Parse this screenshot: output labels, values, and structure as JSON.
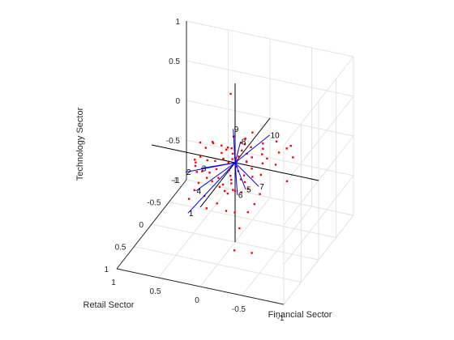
{
  "chart_data": {
    "type": "biplot-3d",
    "xlabel": "Financial Sector",
    "ylabel": "Retail Sector",
    "zlabel": "Technology Sector",
    "xlim": [
      -1,
      1
    ],
    "ylim": [
      -1,
      1
    ],
    "zlim": [
      -1,
      1
    ],
    "xticks": [
      "-1",
      "-0.5",
      "0",
      "0.5",
      "1"
    ],
    "yticks": [
      "-1",
      "-0.5",
      "0",
      "0.5",
      "1"
    ],
    "zticks": [
      "-1",
      "-0.5",
      "0",
      "0.5",
      "1"
    ],
    "grid": true,
    "colors": {
      "vectors": "#0000ff",
      "points": "#ff0000",
      "axes": "#000000"
    },
    "vectors": [
      {
        "label": "1",
        "x": 0.18,
        "y": 0.92,
        "z": -0.16
      },
      {
        "label": "2",
        "x": 0.4,
        "y": 0.46,
        "z": 0.05
      },
      {
        "label": "3",
        "x": 0.28,
        "y": 0.31,
        "z": 0.04
      },
      {
        "label": "4",
        "x": 0.29,
        "y": 0.43,
        "z": -0.18
      },
      {
        "label": "5",
        "x": -0.19,
        "y": 0.15,
        "z": -0.21
      },
      {
        "label": "6",
        "x": -0.12,
        "y": 0.22,
        "z": -0.26
      },
      {
        "label": "7",
        "x": -0.3,
        "y": 0.04,
        "z": -0.21
      },
      {
        "label": "8",
        "x": -0.04,
        "y": -0.06,
        "z": 0.24
      },
      {
        "label": "9",
        "x": 0.01,
        "y": 0.03,
        "z": 0.44
      },
      {
        "label": "10",
        "x": -0.33,
        "y": -0.2,
        "z": 0.31
      }
    ],
    "points": [
      [
        0.19,
        -0.33,
        0.64
      ],
      [
        0.06,
        -0.1,
        0.26
      ],
      [
        0.22,
        0.12,
        0.28
      ],
      [
        0.28,
        0.17,
        0.22
      ],
      [
        0.24,
        0.05,
        0.22
      ],
      [
        0.38,
        0.09,
        0.22
      ],
      [
        0.15,
        0.03,
        0.2
      ],
      [
        0.08,
        0.06,
        0.18
      ],
      [
        0.05,
        -0.02,
        0.16
      ],
      [
        -0.12,
        -0.21,
        0.29
      ],
      [
        -0.08,
        -0.09,
        0.2
      ],
      [
        -0.06,
        -0.05,
        0.14
      ],
      [
        -0.14,
        -0.12,
        0.16
      ],
      [
        0.1,
        0.1,
        0.08
      ],
      [
        0.02,
        0.02,
        0.12
      ],
      [
        -0.05,
        0.02,
        0.1
      ],
      [
        0.0,
        0.08,
        0.09
      ],
      [
        0.3,
        0.38,
        0.03
      ],
      [
        0.35,
        0.3,
        0.05
      ],
      [
        0.27,
        0.3,
        0.0
      ],
      [
        0.2,
        0.25,
        -0.03
      ],
      [
        0.14,
        0.2,
        0.0
      ],
      [
        0.02,
        0.12,
        -0.03
      ],
      [
        -0.03,
        0.03,
        0.04
      ],
      [
        -0.1,
        -0.1,
        0.08
      ],
      [
        -0.22,
        -0.27,
        0.14
      ],
      [
        -0.15,
        0.03,
        0.06
      ],
      [
        -0.32,
        -0.15,
        0.04
      ],
      [
        -0.35,
        -0.35,
        0.15
      ],
      [
        -0.46,
        -0.38,
        0.07
      ],
      [
        -0.5,
        -0.4,
        0.1
      ],
      [
        -0.55,
        -0.34,
        0.0
      ],
      [
        -0.58,
        -0.1,
        -0.16
      ],
      [
        -0.36,
        0.15,
        -0.23
      ],
      [
        -0.34,
        0.26,
        -0.3
      ],
      [
        -0.3,
        0.35,
        -0.36
      ],
      [
        -0.18,
        0.44,
        -0.34
      ],
      [
        -0.06,
        0.4,
        -0.37
      ],
      [
        0.05,
        0.4,
        -0.3
      ],
      [
        0.15,
        0.46,
        -0.35
      ],
      [
        0.2,
        0.4,
        -0.24
      ],
      [
        0.3,
        0.45,
        -0.16
      ],
      [
        0.31,
        0.58,
        -0.2
      ],
      [
        0.27,
        0.4,
        -0.09
      ],
      [
        -0.05,
        0.23,
        -0.12
      ],
      [
        -0.15,
        0.1,
        -0.07
      ],
      [
        -0.18,
        0.15,
        -0.12
      ],
      [
        -0.2,
        0.3,
        -0.16
      ],
      [
        -0.1,
        0.24,
        -0.2
      ],
      [
        0.1,
        0.24,
        -0.08
      ],
      [
        0.06,
        0.3,
        -0.15
      ],
      [
        0.0,
        0.35,
        -0.08
      ],
      [
        -0.24,
        0.45,
        -0.52
      ],
      [
        -0.45,
        0.6,
        -0.7
      ],
      [
        -0.2,
        0.5,
        -0.78
      ],
      [
        -0.07,
        0.38,
        -0.16
      ],
      [
        -0.12,
        -0.04,
        0.02
      ],
      [
        -0.25,
        -0.2,
        0.12
      ],
      [
        0.08,
        0.0,
        -0.02
      ],
      [
        0.18,
        0.14,
        0.06
      ],
      [
        0.12,
        0.05,
        0.05
      ],
      [
        -0.01,
        -0.15,
        0.17
      ],
      [
        -0.26,
        -0.15,
        0.08
      ],
      [
        -0.3,
        -0.07,
        0.02
      ],
      [
        -0.1,
        0.15,
        0.0
      ],
      [
        -0.2,
        0.0,
        -0.03
      ],
      [
        -0.06,
        0.1,
        0.02
      ],
      [
        0.24,
        0.22,
        0.1
      ],
      [
        0.33,
        0.34,
        0.12
      ],
      [
        -0.4,
        -0.3,
        0.05
      ],
      [
        -0.42,
        -0.16,
        -0.02
      ],
      [
        -0.08,
        0.3,
        -0.03
      ],
      [
        0.15,
        0.3,
        -0.1
      ],
      [
        0.2,
        0.33,
        -0.05
      ],
      [
        -0.16,
        0.22,
        -0.05
      ],
      [
        -0.02,
        0.18,
        -0.06
      ],
      [
        0.02,
        0.25,
        -0.22
      ],
      [
        -0.28,
        0.3,
        -0.1
      ],
      [
        -0.12,
        0.35,
        -0.12
      ],
      [
        0.12,
        -0.08,
        0.12
      ],
      [
        0.0,
        0.0,
        0.06
      ],
      [
        -0.18,
        -0.05,
        0.08
      ],
      [
        -0.24,
        0.08,
        -0.08
      ],
      [
        0.4,
        0.2,
        0.06
      ],
      [
        0.34,
        0.18,
        0.1
      ],
      [
        -0.04,
        -0.2,
        0.2
      ],
      [
        -0.33,
        0.05,
        -0.05
      ],
      [
        0.14,
        0.05,
        0.12
      ]
    ]
  }
}
